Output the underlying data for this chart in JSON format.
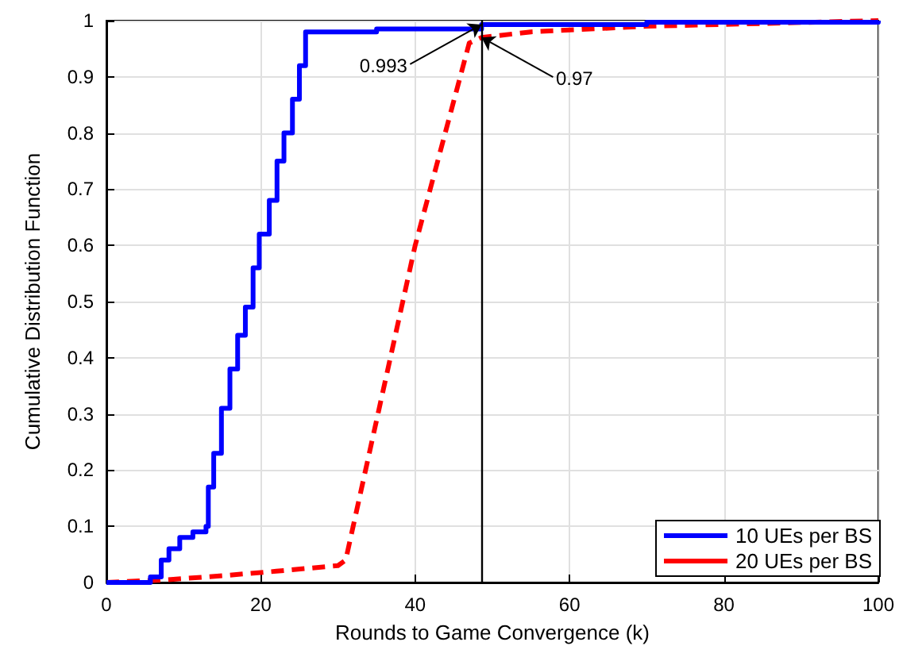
{
  "chart_data": {
    "type": "line",
    "xlabel": "Rounds to Game Convergence (k)",
    "ylabel": "Cumulative Distribution Function",
    "series": [
      {
        "name": "10 UEs per BS",
        "type": "step",
        "color": "#0000ff",
        "line_style": "solid",
        "x": [
          0,
          5.7,
          7.1,
          8.1,
          9.5,
          11.2,
          12.9,
          13.2,
          13.9,
          14.9,
          16,
          17,
          18,
          19,
          19.8,
          21.1,
          22.1,
          23,
          24.1,
          25,
          25.8,
          35,
          48.6,
          70,
          100
        ],
        "values": [
          0,
          0.01,
          0.04,
          0.06,
          0.08,
          0.09,
          0.1,
          0.17,
          0.23,
          0.31,
          0.38,
          0.44,
          0.49,
          0.56,
          0.62,
          0.68,
          0.75,
          0.8,
          0.86,
          0.92,
          0.98,
          0.985,
          0.993,
          0.997,
          1
        ]
      },
      {
        "name": "20 UEs per BS",
        "color": "#ff0000",
        "line_style": "dashed",
        "x": [
          0,
          8,
          15,
          22,
          30,
          31,
          40,
          47,
          48.6,
          55,
          70,
          100
        ],
        "values": [
          0,
          0.005,
          0.012,
          0.02,
          0.03,
          0.04,
          0.6,
          0.96,
          0.97,
          0.98,
          0.99,
          1
        ]
      }
    ],
    "xlim": [
      0,
      100
    ],
    "xticks": [
      0,
      20,
      40,
      60,
      80,
      100
    ],
    "ylim": [
      0,
      1
    ],
    "yticks": [
      0,
      0.1,
      0.2,
      0.3,
      0.4,
      0.5,
      0.6,
      0.7,
      0.8,
      0.9,
      1
    ],
    "ref_lines": [
      {
        "axis": "x",
        "value": 48.6,
        "color": "#000000"
      }
    ],
    "annotations": [
      {
        "text": "0.993",
        "x": 48.6,
        "y": 0.993
      },
      {
        "text": "0.97",
        "x": 48.6,
        "y": 0.97
      }
    ],
    "grid": true,
    "legend": "bottom right",
    "marker": "none"
  }
}
